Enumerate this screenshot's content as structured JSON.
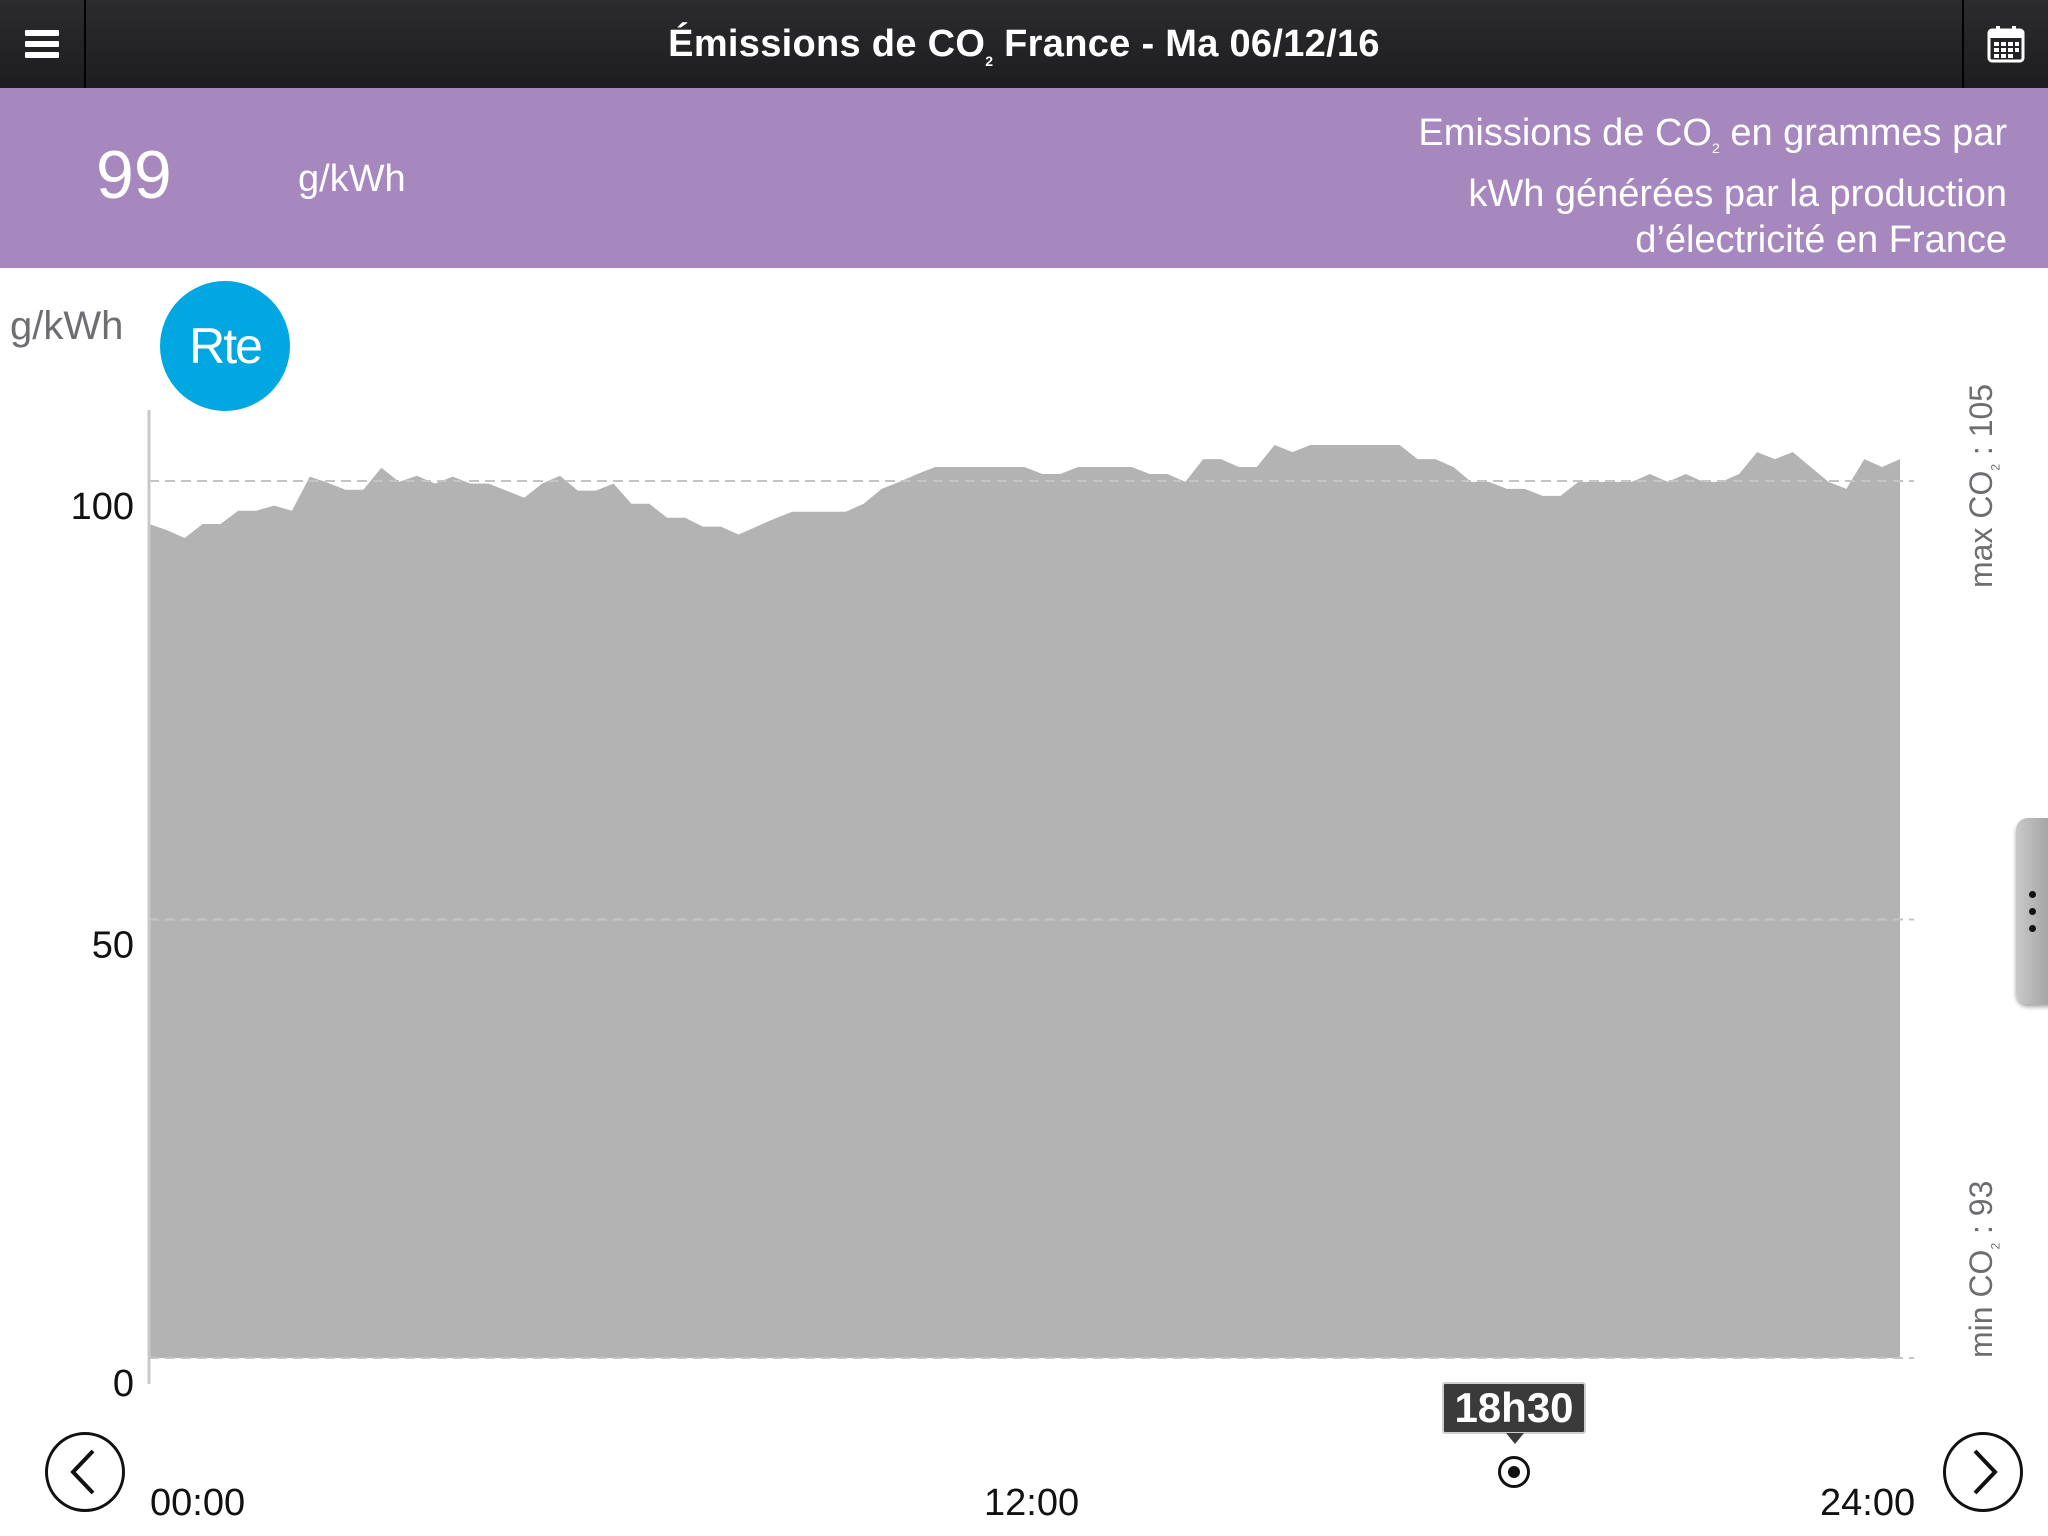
{
  "header": {
    "title_prefix": "Émissions de CO",
    "title_sub": "2",
    "title_suffix": " France - Ma 06/12/16"
  },
  "summary": {
    "value": "99",
    "unit": "g/kWh",
    "desc_line1_prefix": "Emissions de CO",
    "desc_line1_sub": "2",
    "desc_line1_suffix": " en grammes par",
    "desc_line2": "kWh générées par la production",
    "desc_line3": "d’électricité en France"
  },
  "chart": {
    "y_unit": "g/kWh",
    "logo_text": "Rte",
    "max_label_prefix": "max CO",
    "max_label_sub": "2",
    "max_label_suffix": " : 105",
    "min_label_prefix": "min CO",
    "min_label_sub": "2",
    "min_label_suffix": " : 93"
  },
  "chart_data": {
    "type": "area",
    "x_range": [
      "00:00",
      "24:00"
    ],
    "x_ticks": [
      "00:00",
      "12:00",
      "24:00"
    ],
    "y_ticks": [
      0,
      50,
      100
    ],
    "ylim": [
      0,
      108
    ],
    "grid": "dashed horizontal at 0, 50, 100",
    "series": [
      {
        "color": "#b3b3b3",
        "values": [
          95.1,
          94.4,
          93.5,
          95.1,
          95.1,
          96.6,
          96.6,
          97.2,
          96.6,
          100.5,
          99.8,
          99.0,
          99.0,
          101.5,
          99.9,
          100.6,
          99.7,
          100.5,
          99.7,
          99.7,
          98.9,
          98.1,
          99.7,
          100.6,
          98.9,
          98.9,
          99.7,
          97.4,
          97.4,
          95.8,
          95.8,
          94.8,
          94.8,
          93.9,
          94.8,
          95.7,
          96.5,
          96.5,
          96.5,
          96.5,
          97.4,
          99.1,
          99.9,
          100.8,
          101.6,
          101.6,
          101.6,
          101.6,
          101.6,
          101.6,
          100.8,
          100.8,
          101.6,
          101.6,
          101.6,
          101.6,
          100.8,
          100.8,
          99.9,
          102.5,
          102.5,
          101.6,
          101.6,
          104.1,
          103.3,
          104.1,
          104.1,
          104.1,
          104.1,
          104.1,
          104.1,
          102.5,
          102.5,
          101.6,
          99.9,
          99.9,
          99.1,
          99.1,
          98.3,
          98.3,
          99.9,
          99.9,
          99.9,
          99.9,
          100.8,
          99.9,
          100.8,
          99.9,
          99.9,
          100.8,
          103.3,
          102.5,
          103.3,
          101.6,
          99.9,
          99.1,
          102.5,
          101.6,
          102.5
        ]
      }
    ]
  },
  "timeline": {
    "start": "00:00",
    "mid": "12:00",
    "end": "24:00",
    "cursor": "18h30",
    "cursor_fraction": 0.771
  }
}
